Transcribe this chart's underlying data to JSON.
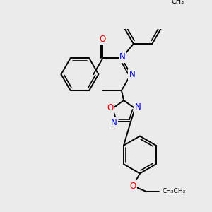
{
  "background_color": "#ebebeb",
  "bond_color": "#000000",
  "bond_width": 1.4,
  "atom_colors": {
    "N": "#0000ee",
    "O": "#ee0000",
    "C": "#000000"
  },
  "font_size_atoms": 8.5,
  "figsize": [
    3.0,
    3.0
  ],
  "dpi": 100,
  "xlim": [
    -0.5,
    5.5
  ],
  "ylim": [
    -2.8,
    5.2
  ]
}
